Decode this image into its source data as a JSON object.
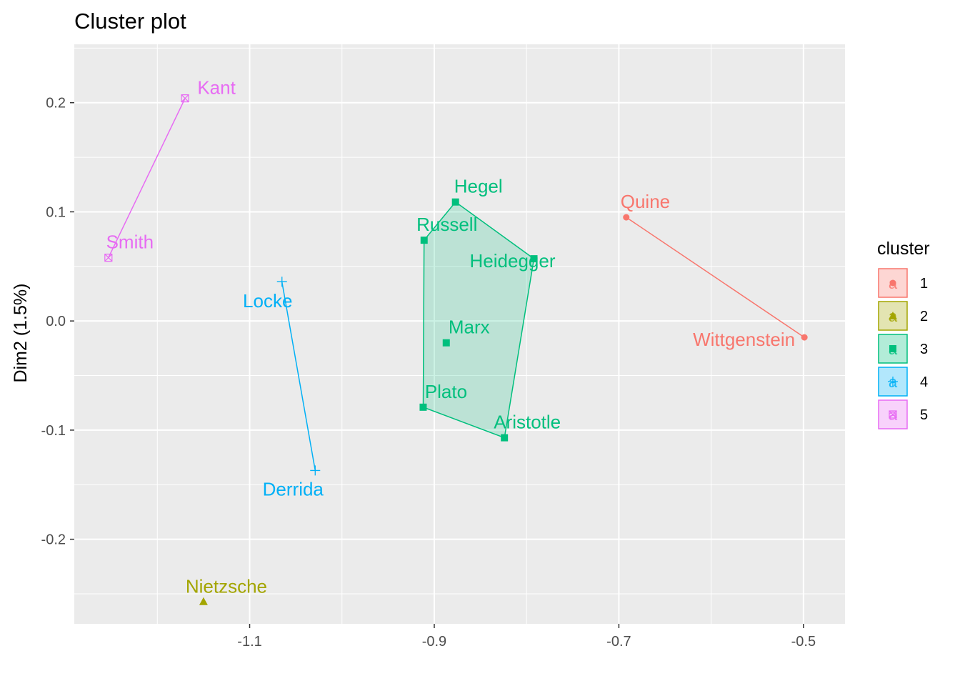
{
  "chart_data": {
    "type": "scatter",
    "title": "Cluster plot",
    "xlabel": "",
    "ylabel": "Dim2 (1.5%)",
    "xlim": [
      -1.29,
      -0.455
    ],
    "ylim": [
      -0.2775,
      0.2535
    ],
    "x_ticks": [
      -1.1,
      -0.9,
      -0.7,
      -0.5
    ],
    "x_tick_labels": [
      "-1.1",
      "-0.9",
      "-0.7",
      "-0.5"
    ],
    "y_ticks": [
      -0.2,
      -0.1,
      0.0,
      0.1,
      0.2
    ],
    "y_tick_labels": [
      "-0.2",
      "-0.1",
      "0.0",
      "0.1",
      "0.2"
    ],
    "grid": true,
    "legend": {
      "title": "cluster",
      "position": "right",
      "key_letter": "a",
      "entries": [
        {
          "label": "1",
          "color": "#F8766D",
          "shape": "circle"
        },
        {
          "label": "2",
          "color": "#A3A500",
          "shape": "triangle"
        },
        {
          "label": "3",
          "color": "#00BF7D",
          "shape": "square"
        },
        {
          "label": "4",
          "color": "#00B0F6",
          "shape": "plus"
        },
        {
          "label": "5",
          "color": "#E76BF3",
          "shape": "boxcross"
        }
      ]
    },
    "series": [
      {
        "name": "1",
        "color": "#F8766D",
        "shape": "circle",
        "filled_hull": false,
        "points": [
          {
            "label": "Quine",
            "x": -0.692,
            "y": 0.095
          },
          {
            "label": "Wittgenstein",
            "x": -0.499,
            "y": -0.015
          }
        ]
      },
      {
        "name": "2",
        "color": "#A3A500",
        "shape": "triangle",
        "filled_hull": false,
        "points": [
          {
            "label": "Nietzsche",
            "x": -1.15,
            "y": -0.257
          }
        ]
      },
      {
        "name": "3",
        "color": "#00BF7D",
        "shape": "square",
        "filled_hull": true,
        "points": [
          {
            "label": "Hegel",
            "x": -0.877,
            "y": 0.109
          },
          {
            "label": "Russell",
            "x": -0.911,
            "y": 0.074
          },
          {
            "label": "Heidegger",
            "x": -0.792,
            "y": 0.057
          },
          {
            "label": "Marx",
            "x": -0.887,
            "y": -0.02
          },
          {
            "label": "Plato",
            "x": -0.912,
            "y": -0.079
          },
          {
            "label": "Aristotle",
            "x": -0.824,
            "y": -0.107
          }
        ]
      },
      {
        "name": "4",
        "color": "#00B0F6",
        "shape": "plus",
        "filled_hull": false,
        "points": [
          {
            "label": "Locke",
            "x": -1.065,
            "y": 0.036
          },
          {
            "label": "Derrida",
            "x": -1.029,
            "y": -0.137
          }
        ]
      },
      {
        "name": "5",
        "color": "#E76BF3",
        "shape": "boxcross",
        "filled_hull": false,
        "points": [
          {
            "label": "Kant",
            "x": -1.17,
            "y": 0.204
          },
          {
            "label": "Smith",
            "x": -1.253,
            "y": 0.058
          }
        ]
      }
    ]
  }
}
